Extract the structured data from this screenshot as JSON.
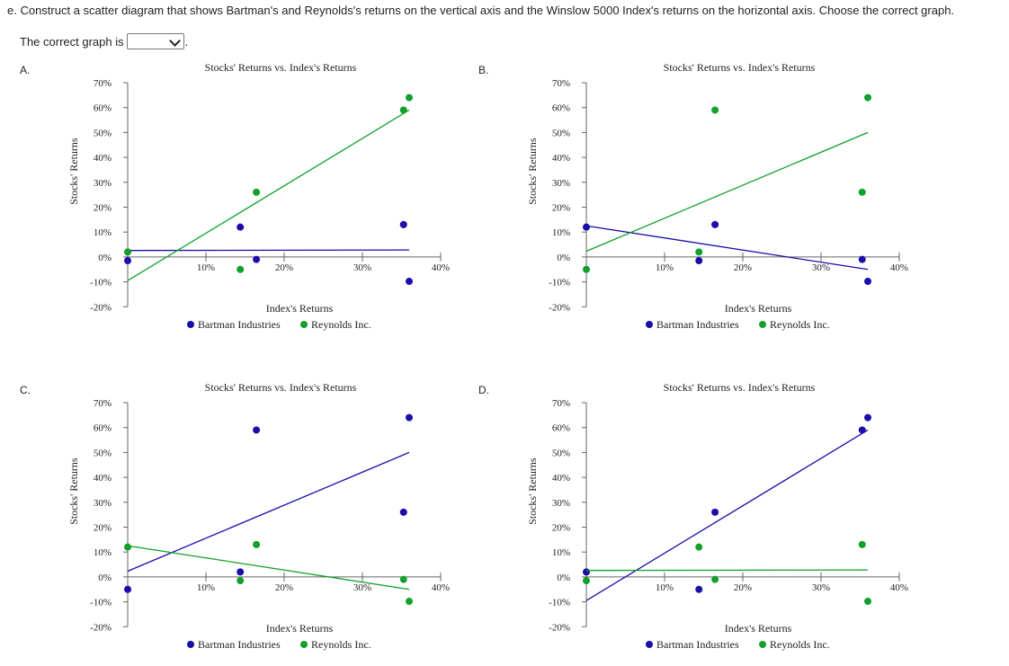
{
  "question": {
    "text": "e. Construct a scatter diagram that shows Bartman's and Reynolds's returns on the vertical axis and the Winslow 5000 Index's returns on the horizontal axis. Choose the correct graph.",
    "prompt": "The correct graph is",
    "selected": "",
    "period": "."
  },
  "colors": {
    "bartman": "#1a0dab",
    "reynolds": "#12a02a",
    "axis": "#666666"
  },
  "chart_data": [
    {
      "option": "A.",
      "type": "scatter",
      "title": "Stocks' Returns vs. Index's Returns",
      "xlabel": "Index's Returns",
      "ylabel": "Stocks' Returns",
      "xlim": [
        0,
        40
      ],
      "ylim": [
        -20,
        70
      ],
      "xticks": [
        "10%",
        "20%",
        "30%",
        "40%"
      ],
      "yticks": [
        "70%",
        "60%",
        "50%",
        "40%",
        "30%",
        "20%",
        "10%",
        "0%",
        "-10%",
        "-20%"
      ],
      "series": [
        {
          "name": "Bartman Industries",
          "color": "bartman",
          "points": [
            [
              0,
              -1.5
            ],
            [
              14,
              12
            ],
            [
              16,
              -1
            ],
            [
              34.3,
              13
            ],
            [
              35,
              -9.8
            ]
          ],
          "trend": [
            [
              0,
              2.6
            ],
            [
              35,
              2.8
            ]
          ]
        },
        {
          "name": "Reynolds Inc.",
          "color": "reynolds",
          "points": [
            [
              0,
              2
            ],
            [
              14,
              -5
            ],
            [
              16,
              26
            ],
            [
              34.3,
              59
            ],
            [
              35,
              64
            ]
          ],
          "trend": [
            [
              0,
              -9.5
            ],
            [
              35,
              59
            ]
          ]
        }
      ]
    },
    {
      "option": "B.",
      "type": "scatter",
      "title": "Stocks' Returns vs. Index's Returns",
      "xlabel": "Index's Returns",
      "ylabel": "Stocks' Returns",
      "xlim": [
        0,
        40
      ],
      "ylim": [
        -20,
        70
      ],
      "xticks": [
        "10%",
        "20%",
        "30%",
        "40%"
      ],
      "yticks": [
        "70%",
        "60%",
        "50%",
        "40%",
        "30%",
        "20%",
        "10%",
        "0%",
        "-10%",
        "-20%"
      ],
      "series": [
        {
          "name": "Bartman Industries",
          "color": "bartman",
          "points": [
            [
              0,
              12
            ],
            [
              14,
              -1.5
            ],
            [
              16,
              13
            ],
            [
              34.3,
              -1
            ],
            [
              35,
              -9.8
            ]
          ],
          "trend": [
            [
              0,
              12.5
            ],
            [
              35,
              -5
            ]
          ]
        },
        {
          "name": "Reynolds Inc.",
          "color": "reynolds",
          "points": [
            [
              0,
              -5
            ],
            [
              14,
              2
            ],
            [
              16,
              59
            ],
            [
              34.3,
              26
            ],
            [
              35,
              64
            ]
          ],
          "trend": [
            [
              0,
              2.3
            ],
            [
              35,
              50
            ]
          ]
        }
      ]
    },
    {
      "option": "C.",
      "type": "scatter",
      "title": "Stocks' Returns vs. Index's Returns",
      "xlabel": "Index's Returns",
      "ylabel": "Stocks' Returns",
      "xlim": [
        0,
        40
      ],
      "ylim": [
        -20,
        70
      ],
      "xticks": [
        "10%",
        "20%",
        "30%",
        "40%"
      ],
      "yticks": [
        "70%",
        "60%",
        "50%",
        "40%",
        "30%",
        "20%",
        "10%",
        "0%",
        "-10%",
        "-20%"
      ],
      "series": [
        {
          "name": "Bartman Industries",
          "color": "bartman",
          "points": [
            [
              0,
              -5
            ],
            [
              14,
              2
            ],
            [
              16,
              59
            ],
            [
              34.3,
              26
            ],
            [
              35,
              64
            ]
          ],
          "trend": [
            [
              0,
              2.3
            ],
            [
              35,
              50
            ]
          ]
        },
        {
          "name": "Reynolds Inc.",
          "color": "reynolds",
          "points": [
            [
              0,
              12
            ],
            [
              14,
              -1.5
            ],
            [
              16,
              13
            ],
            [
              34.3,
              -1
            ],
            [
              35,
              -9.8
            ]
          ],
          "trend": [
            [
              0,
              12.5
            ],
            [
              35,
              -5
            ]
          ]
        }
      ]
    },
    {
      "option": "D.",
      "type": "scatter",
      "title": "Stocks' Returns vs. Index's Returns",
      "xlabel": "Index's Returns",
      "ylabel": "Stocks' Returns",
      "xlim": [
        0,
        40
      ],
      "ylim": [
        -20,
        70
      ],
      "xticks": [
        "10%",
        "20%",
        "30%",
        "40%"
      ],
      "yticks": [
        "70%",
        "60%",
        "50%",
        "40%",
        "30%",
        "20%",
        "10%",
        "0%",
        "-10%",
        "-20%"
      ],
      "series": [
        {
          "name": "Bartman Industries",
          "color": "bartman",
          "points": [
            [
              0,
              2
            ],
            [
              14,
              -5
            ],
            [
              16,
              26
            ],
            [
              34.3,
              59
            ],
            [
              35,
              64
            ]
          ],
          "trend": [
            [
              0,
              -9.5
            ],
            [
              35,
              59
            ]
          ]
        },
        {
          "name": "Reynolds Inc.",
          "color": "reynolds",
          "points": [
            [
              0,
              -1.5
            ],
            [
              14,
              12
            ],
            [
              16,
              -1
            ],
            [
              34.3,
              13
            ],
            [
              35,
              -9.8
            ]
          ],
          "trend": [
            [
              0,
              2.6
            ],
            [
              35,
              2.8
            ]
          ]
        }
      ]
    }
  ]
}
